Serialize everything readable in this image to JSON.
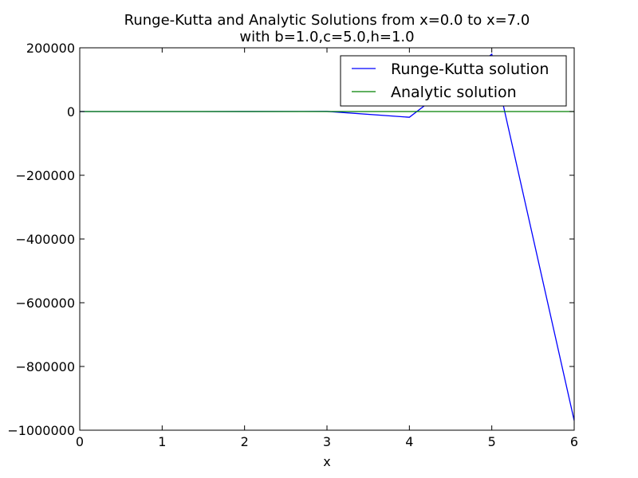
{
  "chart_data": {
    "type": "line",
    "title": "Runge-Kutta and Analytic Solutions from x=0.0 to x=7.0",
    "subtitle": "with b=1.0,c=5.0,h=1.0",
    "xlabel": "x",
    "ylabel": "",
    "xlim": [
      0,
      6
    ],
    "ylim": [
      -1000000,
      200000
    ],
    "xticks": [
      0,
      1,
      2,
      3,
      4,
      5,
      6
    ],
    "xtick_labels": [
      "0",
      "1",
      "2",
      "3",
      "4",
      "5",
      "6"
    ],
    "yticks": [
      200000,
      0,
      -200000,
      -400000,
      -600000,
      -800000,
      -1000000
    ],
    "ytick_labels": [
      "200000",
      "0",
      "−200000",
      "−400000",
      "−600000",
      "−800000",
      "−1000000"
    ],
    "grid": false,
    "legend_position": "top-right",
    "series": [
      {
        "name": "Runge-Kutta solution",
        "color": "#0000ff",
        "x": [
          0,
          1,
          2,
          3,
          4,
          5,
          6
        ],
        "y": [
          1,
          20,
          100,
          500,
          -18000,
          180000,
          -970000
        ]
      },
      {
        "name": "Analytic solution",
        "color": "#008000",
        "x": [
          0,
          1,
          2,
          3,
          4,
          5,
          6
        ],
        "y": [
          1,
          0,
          0,
          0,
          0,
          0,
          0
        ]
      }
    ]
  }
}
